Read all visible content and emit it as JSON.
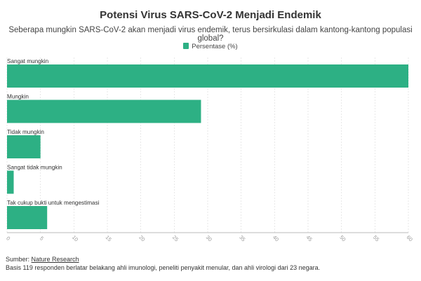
{
  "title": "Potensi Virus SARS-CoV-2 Menjadi Endemik",
  "subtitle": "Seberapa mungkin SARS-CoV-2 akan menjadi virus endemik, terus bersirkulasi dalam kantong-kantong populasi global?",
  "colors": {
    "bar": "#2db084",
    "axis": "#bbbbbb",
    "grid": "#d8d8d8",
    "tick_text": "#999999"
  },
  "footer": {
    "source_label": "Sumber:",
    "source_name": "Nature Research",
    "note": "Basis 119 responden berlatar belakang ahli imunologi, peneliti penyakit menular, dan ahli virologi dari 23 negara."
  },
  "chart_data": {
    "type": "bar",
    "orientation": "horizontal",
    "categories": [
      "Sangat mungkin",
      "Mungkin",
      "Tidak mungkin",
      "Sangat tidak mungkin",
      "Tak cukup bukti untuk mengestimasi"
    ],
    "series": [
      {
        "name": "Persentase (%)",
        "values": [
          60,
          29,
          5,
          1,
          6
        ]
      }
    ],
    "xlim": [
      0,
      60
    ],
    "xticks": [
      0,
      5,
      10,
      15,
      20,
      25,
      30,
      35,
      40,
      45,
      50,
      55,
      60
    ],
    "legend": "top-center"
  }
}
